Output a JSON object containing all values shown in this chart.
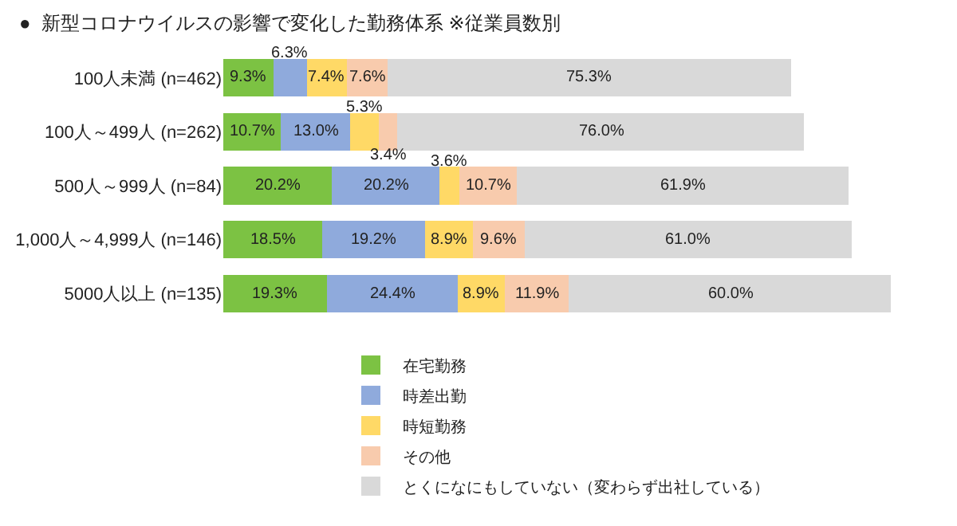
{
  "chart_data": {
    "type": "bar",
    "orientation": "horizontal",
    "stacked": true,
    "title": "●  新型コロナウイルスの影響で変化した勤務体系 ※従業員数別",
    "categories": [
      "100人未満 (n=462)",
      "100人～499人 (n=262)",
      "500人～999人 (n=84)",
      "1,000人～4,999人 (n=146)",
      "5000人以上 (n=135)"
    ],
    "series": [
      {
        "name": "在宅勤務",
        "color": "#7cc243",
        "values": [
          9.3,
          10.7,
          20.2,
          18.5,
          19.3
        ],
        "value_labels": [
          "9.3%",
          "10.7%",
          "20.2%",
          "18.5%",
          "19.3%"
        ]
      },
      {
        "name": "時差出勤",
        "color": "#8faadc",
        "values": [
          6.3,
          13.0,
          20.2,
          19.2,
          24.4
        ],
        "value_labels": [
          "6.3%",
          "13.0%",
          "20.2%",
          "19.2%",
          "24.4%"
        ]
      },
      {
        "name": "時短勤務",
        "color": "#ffd966",
        "values": [
          7.4,
          5.3,
          3.6,
          8.9,
          8.9
        ],
        "value_labels": [
          "7.4%",
          "5.3%",
          "3.6%",
          "8.9%",
          "8.9%"
        ]
      },
      {
        "name": "その他",
        "color": "#f8cbad",
        "values": [
          7.6,
          3.4,
          10.7,
          9.6,
          11.9
        ],
        "value_labels": [
          "7.6%",
          "3.4%",
          "10.7%",
          "9.6%",
          "11.9%"
        ]
      },
      {
        "name": "とくになにもしていない（変わらず出社している）",
        "color": "#d9d9d9",
        "values": [
          75.3,
          76.0,
          61.9,
          61.0,
          60.0
        ],
        "value_labels": [
          "75.3%",
          "76.0%",
          "61.9%",
          "61.0%",
          "60.0%"
        ]
      }
    ],
    "xlim": [
      0,
      125
    ],
    "tick_labels": "y",
    "grid": false,
    "legend": "bottom"
  }
}
